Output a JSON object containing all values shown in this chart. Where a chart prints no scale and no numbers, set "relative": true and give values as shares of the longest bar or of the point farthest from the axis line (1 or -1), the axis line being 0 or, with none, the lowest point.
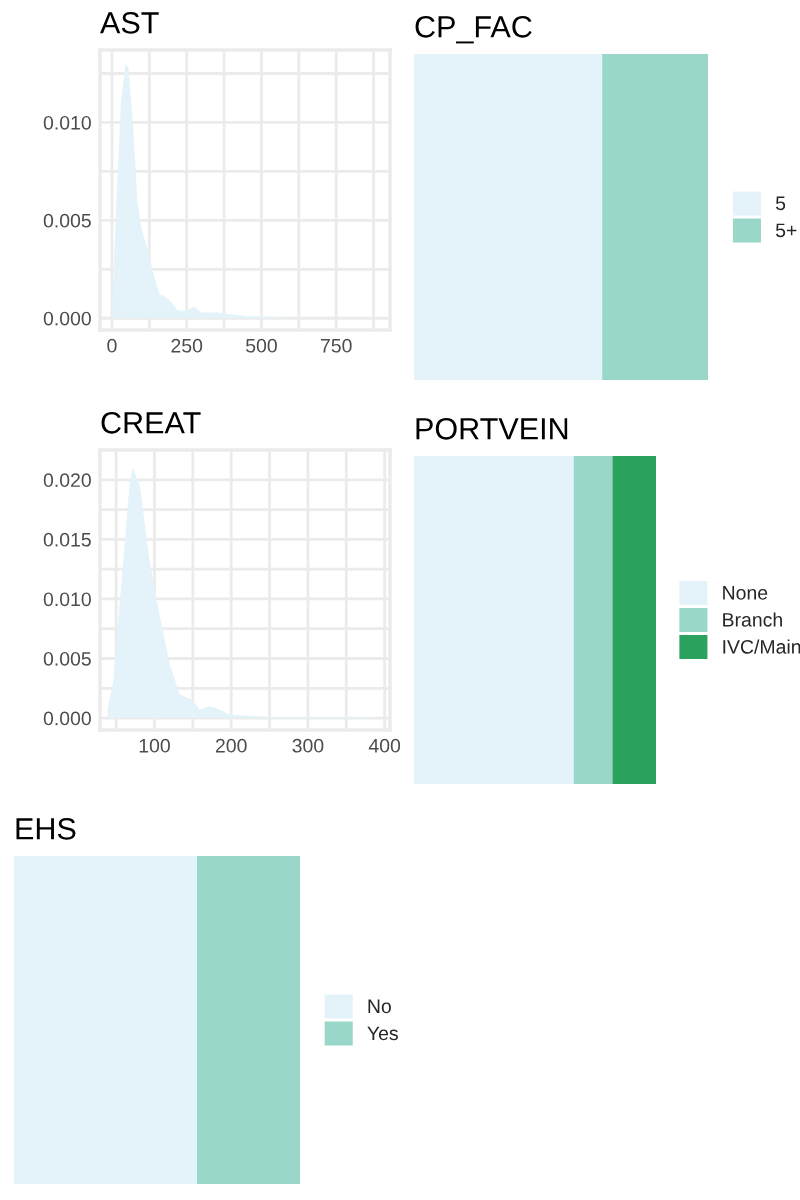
{
  "chart_data": [
    {
      "type": "area",
      "title": "AST",
      "xlim": [
        -40,
        930
      ],
      "ylim": [
        -0.0006,
        0.0137
      ],
      "xticks": [
        0,
        {
          "value": 125,
          "label": null
        },
        250,
        {
          "value": 375,
          "label": null
        },
        500,
        {
          "value": 625,
          "label": null
        },
        750,
        {
          "value": 875,
          "label": null
        }
      ],
      "yticks": [
        {
          "value": 0,
          "label": "0.000"
        },
        {
          "value": 0.0025,
          "label": null
        },
        {
          "value": 0.005,
          "label": "0.005"
        },
        {
          "value": 0.0075,
          "label": null
        },
        {
          "value": 0.01,
          "label": "0.010"
        },
        {
          "value": 0.0125,
          "label": null
        }
      ],
      "grid": true,
      "legend": false,
      "series": [
        {
          "color": "#e3f3f9",
          "x": [
            2,
            15,
            30,
            45,
            55,
            70,
            85,
            100,
            120,
            140,
            160,
            180,
            200,
            220,
            250,
            275,
            300,
            350,
            400,
            450,
            500,
            600,
            700,
            800,
            874
          ],
          "values": [
            0.001,
            0.006,
            0.011,
            0.013,
            0.0128,
            0.01,
            0.006,
            0.0045,
            0.0035,
            0.0022,
            0.0012,
            0.0011,
            0.0008,
            0.0004,
            0.0004,
            0.0006,
            0.0003,
            0.0003,
            0.0002,
            0.0001,
            0.0001,
            0,
            0,
            0,
            0
          ]
        }
      ]
    },
    {
      "type": "bar",
      "title": "CP_FAC",
      "orientation": "horizontal",
      "stacked": true,
      "relative": true,
      "categories": [
        null
      ],
      "tick_labels": false,
      "legend": "right",
      "series": [
        {
          "name": "5",
          "color": "#e3f3f9",
          "values": [
            0.64
          ]
        },
        {
          "name": "5+",
          "color": "#99d8c9",
          "values": [
            0.36
          ]
        }
      ]
    },
    {
      "type": "area",
      "title": "CREAT",
      "xlim": [
        29,
        407
      ],
      "ylim": [
        -0.001,
        0.0225
      ],
      "xticks": [
        {
          "value": 50,
          "label": null
        },
        100,
        {
          "value": 150,
          "label": null
        },
        200,
        {
          "value": 250,
          "label": null
        },
        300,
        {
          "value": 350,
          "label": null
        },
        400
      ],
      "yticks": [
        {
          "value": 0,
          "label": "0.000"
        },
        {
          "value": 0.0025,
          "label": null
        },
        {
          "value": 0.005,
          "label": "0.005"
        },
        {
          "value": 0.0075,
          "label": null
        },
        {
          "value": 0.01,
          "label": "0.010"
        },
        {
          "value": 0.0125,
          "label": null
        },
        {
          "value": 0.015,
          "label": "0.015"
        },
        {
          "value": 0.0175,
          "label": null
        },
        {
          "value": 0.02,
          "label": "0.020"
        },
        {
          "value": 0.0225,
          "label": null
        }
      ],
      "grid": true,
      "legend": false,
      "series": [
        {
          "color": "#e3f3f9",
          "x": [
            39,
            46,
            59,
            68,
            72,
            81,
            94,
            107,
            120,
            133,
            150,
            159,
            172,
            185,
            198,
            220,
            246,
            290,
            385
          ],
          "values": [
            0.0008,
            0.003,
            0.013,
            0.02,
            0.021,
            0.0195,
            0.013,
            0.0085,
            0.0045,
            0.002,
            0.0015,
            0.0007,
            0.001,
            0.0007,
            0.0003,
            0.0002,
            0.0001,
            0.0001,
            0.0001
          ]
        }
      ]
    },
    {
      "type": "bar",
      "title": "PORTVEIN",
      "orientation": "horizontal",
      "stacked": true,
      "relative": true,
      "categories": [
        null
      ],
      "tick_labels": false,
      "legend": "right",
      "series": [
        {
          "name": "None",
          "color": "#e3f3f9",
          "values": [
            0.66
          ]
        },
        {
          "name": "Branch",
          "color": "#99d8c9",
          "values": [
            0.16
          ]
        },
        {
          "name": "IVC/Main",
          "color": "#2ca25f",
          "values": [
            0.18
          ]
        }
      ]
    },
    {
      "type": "bar",
      "title": "EHS",
      "orientation": "horizontal",
      "stacked": true,
      "relative": true,
      "categories": [
        null
      ],
      "tick_labels": false,
      "legend": "right",
      "series": [
        {
          "name": "No",
          "color": "#e3f3f9",
          "values": [
            0.64
          ]
        },
        {
          "name": "Yes",
          "color": "#99d8c9",
          "values": [
            0.36
          ]
        }
      ]
    }
  ]
}
